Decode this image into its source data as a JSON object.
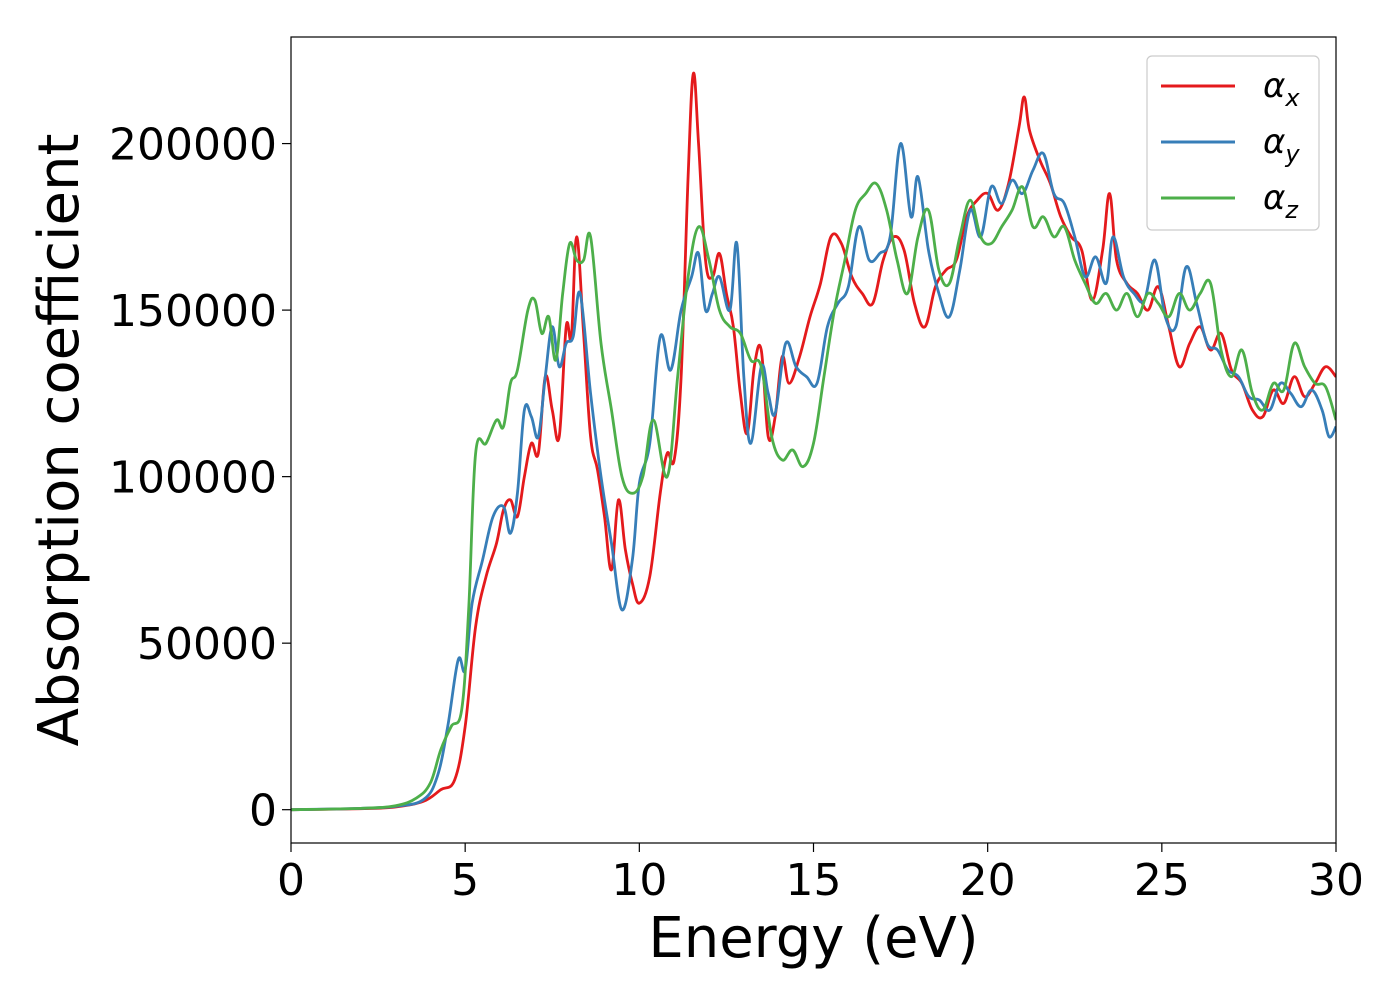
{
  "chart_data": {
    "type": "line",
    "title": "",
    "xlabel": "Energy (eV)",
    "ylabel": "Absorption coefficient",
    "xlim": [
      0,
      30
    ],
    "ylim": [
      -10000,
      232000
    ],
    "xticks": [
      0,
      5,
      10,
      15,
      20,
      25,
      30
    ],
    "yticks": [
      0,
      50000,
      100000,
      150000,
      200000
    ],
    "xtick_labels": [
      "0",
      "5",
      "10",
      "15",
      "20",
      "25",
      "30"
    ],
    "ytick_labels": [
      "0",
      "50000",
      "100000",
      "150000",
      "200000"
    ],
    "grid": false,
    "legend_position": "top-right",
    "series": [
      {
        "name": "αx",
        "legend_symbol": "α",
        "legend_sub": "x",
        "color": "#e41a1c",
        "points": [
          [
            0,
            0
          ],
          [
            2,
            300
          ],
          [
            3,
            800
          ],
          [
            3.8,
            2500
          ],
          [
            4.3,
            6000
          ],
          [
            4.7,
            9000
          ],
          [
            5,
            25000
          ],
          [
            5.3,
            55000
          ],
          [
            5.6,
            70000
          ],
          [
            5.9,
            80000
          ],
          [
            6.1,
            90000
          ],
          [
            6.3,
            93000
          ],
          [
            6.5,
            88000
          ],
          [
            6.7,
            100000
          ],
          [
            6.9,
            110000
          ],
          [
            7.1,
            107000
          ],
          [
            7.3,
            130000
          ],
          [
            7.5,
            120000
          ],
          [
            7.7,
            112000
          ],
          [
            7.9,
            145000
          ],
          [
            8.05,
            142000
          ],
          [
            8.2,
            172000
          ],
          [
            8.4,
            143000
          ],
          [
            8.6,
            112000
          ],
          [
            8.8,
            102000
          ],
          [
            9,
            88000
          ],
          [
            9.2,
            72000
          ],
          [
            9.4,
            93000
          ],
          [
            9.6,
            78000
          ],
          [
            9.8,
            68000
          ],
          [
            10,
            62000
          ],
          [
            10.3,
            70000
          ],
          [
            10.6,
            95000
          ],
          [
            10.8,
            107000
          ],
          [
            11,
            105000
          ],
          [
            11.2,
            130000
          ],
          [
            11.4,
            190000
          ],
          [
            11.55,
            221000
          ],
          [
            11.7,
            200000
          ],
          [
            11.9,
            165000
          ],
          [
            12.1,
            160000
          ],
          [
            12.3,
            167000
          ],
          [
            12.5,
            155000
          ],
          [
            12.7,
            145000
          ],
          [
            12.9,
            125000
          ],
          [
            13.1,
            113000
          ],
          [
            13.3,
            133000
          ],
          [
            13.5,
            138000
          ],
          [
            13.7,
            112000
          ],
          [
            13.9,
            118000
          ],
          [
            14.1,
            136000
          ],
          [
            14.3,
            128000
          ],
          [
            14.6,
            136000
          ],
          [
            14.9,
            148000
          ],
          [
            15.2,
            158000
          ],
          [
            15.5,
            172000
          ],
          [
            15.8,
            170000
          ],
          [
            16.1,
            160000
          ],
          [
            16.4,
            155000
          ],
          [
            16.7,
            152000
          ],
          [
            17,
            165000
          ],
          [
            17.3,
            172000
          ],
          [
            17.6,
            168000
          ],
          [
            17.9,
            152000
          ],
          [
            18.2,
            145000
          ],
          [
            18.5,
            157000
          ],
          [
            18.8,
            162000
          ],
          [
            19.1,
            165000
          ],
          [
            19.4,
            178000
          ],
          [
            19.7,
            183000
          ],
          [
            20,
            185000
          ],
          [
            20.3,
            180000
          ],
          [
            20.6,
            188000
          ],
          [
            20.9,
            205000
          ],
          [
            21.05,
            214000
          ],
          [
            21.2,
            204000
          ],
          [
            21.5,
            195000
          ],
          [
            21.8,
            188000
          ],
          [
            22.1,
            178000
          ],
          [
            22.4,
            172000
          ],
          [
            22.7,
            168000
          ],
          [
            23,
            153000
          ],
          [
            23.3,
            168000
          ],
          [
            23.5,
            185000
          ],
          [
            23.7,
            165000
          ],
          [
            24,
            158000
          ],
          [
            24.3,
            155000
          ],
          [
            24.6,
            150000
          ],
          [
            24.9,
            157000
          ],
          [
            25.2,
            145000
          ],
          [
            25.5,
            133000
          ],
          [
            25.8,
            140000
          ],
          [
            26.1,
            145000
          ],
          [
            26.4,
            138000
          ],
          [
            26.7,
            143000
          ],
          [
            27,
            132000
          ],
          [
            27.3,
            128000
          ],
          [
            27.6,
            120000
          ],
          [
            27.9,
            118000
          ],
          [
            28.2,
            126000
          ],
          [
            28.5,
            122000
          ],
          [
            28.8,
            130000
          ],
          [
            29.1,
            124000
          ],
          [
            29.4,
            128000
          ],
          [
            29.7,
            133000
          ],
          [
            30,
            130000
          ]
        ]
      },
      {
        "name": "αy",
        "legend_symbol": "α",
        "legend_sub": "y",
        "color": "#377eb8",
        "points": [
          [
            0,
            0
          ],
          [
            2,
            400
          ],
          [
            3,
            1000
          ],
          [
            3.8,
            3000
          ],
          [
            4.2,
            10000
          ],
          [
            4.5,
            25000
          ],
          [
            4.8,
            45000
          ],
          [
            5,
            42000
          ],
          [
            5.2,
            62000
          ],
          [
            5.5,
            75000
          ],
          [
            5.8,
            88000
          ],
          [
            6.1,
            91000
          ],
          [
            6.3,
            83000
          ],
          [
            6.5,
            95000
          ],
          [
            6.7,
            120000
          ],
          [
            6.9,
            118000
          ],
          [
            7.1,
            112000
          ],
          [
            7.3,
            130000
          ],
          [
            7.5,
            145000
          ],
          [
            7.7,
            133000
          ],
          [
            7.9,
            140000
          ],
          [
            8.1,
            142000
          ],
          [
            8.3,
            155000
          ],
          [
            8.6,
            125000
          ],
          [
            8.9,
            100000
          ],
          [
            9.2,
            80000
          ],
          [
            9.5,
            60000
          ],
          [
            9.8,
            75000
          ],
          [
            10,
            98000
          ],
          [
            10.3,
            110000
          ],
          [
            10.6,
            142000
          ],
          [
            10.9,
            132000
          ],
          [
            11.2,
            150000
          ],
          [
            11.5,
            160000
          ],
          [
            11.7,
            167000
          ],
          [
            11.9,
            150000
          ],
          [
            12.1,
            155000
          ],
          [
            12.3,
            160000
          ],
          [
            12.6,
            150000
          ],
          [
            12.8,
            170000
          ],
          [
            13,
            130000
          ],
          [
            13.2,
            110000
          ],
          [
            13.5,
            133000
          ],
          [
            13.7,
            125000
          ],
          [
            13.9,
            119000
          ],
          [
            14.2,
            140000
          ],
          [
            14.5,
            133000
          ],
          [
            14.8,
            130000
          ],
          [
            15.1,
            128000
          ],
          [
            15.4,
            145000
          ],
          [
            15.7,
            152000
          ],
          [
            16,
            157000
          ],
          [
            16.3,
            175000
          ],
          [
            16.6,
            165000
          ],
          [
            16.9,
            167000
          ],
          [
            17.2,
            172000
          ],
          [
            17.5,
            200000
          ],
          [
            17.8,
            178000
          ],
          [
            18,
            190000
          ],
          [
            18.3,
            168000
          ],
          [
            18.6,
            155000
          ],
          [
            18.9,
            148000
          ],
          [
            19.2,
            162000
          ],
          [
            19.5,
            180000
          ],
          [
            19.8,
            172000
          ],
          [
            20.1,
            187000
          ],
          [
            20.4,
            182000
          ],
          [
            20.7,
            189000
          ],
          [
            21,
            185000
          ],
          [
            21.3,
            192000
          ],
          [
            21.6,
            197000
          ],
          [
            21.9,
            185000
          ],
          [
            22.2,
            182000
          ],
          [
            22.5,
            172000
          ],
          [
            22.8,
            160000
          ],
          [
            23.1,
            166000
          ],
          [
            23.4,
            158000
          ],
          [
            23.6,
            172000
          ],
          [
            23.9,
            160000
          ],
          [
            24.2,
            155000
          ],
          [
            24.5,
            153000
          ],
          [
            24.8,
            165000
          ],
          [
            25.1,
            148000
          ],
          [
            25.4,
            145000
          ],
          [
            25.7,
            163000
          ],
          [
            26,
            152000
          ],
          [
            26.3,
            140000
          ],
          [
            26.6,
            138000
          ],
          [
            26.9,
            132000
          ],
          [
            27.2,
            130000
          ],
          [
            27.5,
            124000
          ],
          [
            27.8,
            123000
          ],
          [
            28.1,
            120000
          ],
          [
            28.4,
            128000
          ],
          [
            28.7,
            125000
          ],
          [
            29,
            121000
          ],
          [
            29.3,
            126000
          ],
          [
            29.6,
            120000
          ],
          [
            29.8,
            112000
          ],
          [
            30,
            115000
          ]
        ]
      },
      {
        "name": "αz",
        "legend_symbol": "α",
        "legend_sub": "z",
        "color": "#4daf4a",
        "points": [
          [
            0,
            0
          ],
          [
            2,
            400
          ],
          [
            3,
            1200
          ],
          [
            3.6,
            3500
          ],
          [
            4,
            8000
          ],
          [
            4.3,
            18000
          ],
          [
            4.6,
            25000
          ],
          [
            4.9,
            30000
          ],
          [
            5.1,
            60000
          ],
          [
            5.3,
            107000
          ],
          [
            5.6,
            110000
          ],
          [
            5.9,
            117000
          ],
          [
            6.1,
            115000
          ],
          [
            6.3,
            128000
          ],
          [
            6.5,
            132000
          ],
          [
            6.8,
            150000
          ],
          [
            7,
            153000
          ],
          [
            7.2,
            143000
          ],
          [
            7.4,
            148000
          ],
          [
            7.6,
            135000
          ],
          [
            7.8,
            155000
          ],
          [
            8,
            170000
          ],
          [
            8.2,
            165000
          ],
          [
            8.4,
            165000
          ],
          [
            8.6,
            172000
          ],
          [
            8.9,
            140000
          ],
          [
            9.2,
            120000
          ],
          [
            9.5,
            100000
          ],
          [
            9.8,
            95000
          ],
          [
            10.1,
            100000
          ],
          [
            10.4,
            117000
          ],
          [
            10.8,
            100000
          ],
          [
            11.1,
            130000
          ],
          [
            11.4,
            160000
          ],
          [
            11.7,
            175000
          ],
          [
            12,
            165000
          ],
          [
            12.3,
            150000
          ],
          [
            12.6,
            145000
          ],
          [
            12.9,
            143000
          ],
          [
            13.2,
            135000
          ],
          [
            13.5,
            133000
          ],
          [
            13.8,
            112000
          ],
          [
            14.1,
            105000
          ],
          [
            14.4,
            108000
          ],
          [
            14.7,
            103000
          ],
          [
            15,
            110000
          ],
          [
            15.3,
            130000
          ],
          [
            15.6,
            150000
          ],
          [
            15.9,
            165000
          ],
          [
            16.2,
            180000
          ],
          [
            16.5,
            185000
          ],
          [
            16.8,
            188000
          ],
          [
            17.1,
            180000
          ],
          [
            17.4,
            165000
          ],
          [
            17.7,
            155000
          ],
          [
            18,
            172000
          ],
          [
            18.3,
            180000
          ],
          [
            18.6,
            162000
          ],
          [
            18.9,
            158000
          ],
          [
            19.2,
            172000
          ],
          [
            19.5,
            183000
          ],
          [
            19.8,
            172000
          ],
          [
            20.1,
            170000
          ],
          [
            20.4,
            175000
          ],
          [
            20.7,
            180000
          ],
          [
            21,
            187000
          ],
          [
            21.3,
            175000
          ],
          [
            21.6,
            178000
          ],
          [
            21.9,
            172000
          ],
          [
            22.2,
            175000
          ],
          [
            22.5,
            165000
          ],
          [
            22.8,
            158000
          ],
          [
            23.1,
            152000
          ],
          [
            23.4,
            155000
          ],
          [
            23.7,
            150000
          ],
          [
            24,
            155000
          ],
          [
            24.3,
            148000
          ],
          [
            24.6,
            155000
          ],
          [
            24.9,
            152000
          ],
          [
            25.2,
            148000
          ],
          [
            25.5,
            155000
          ],
          [
            25.8,
            150000
          ],
          [
            26.1,
            155000
          ],
          [
            26.4,
            158000
          ],
          [
            26.7,
            138000
          ],
          [
            27,
            130000
          ],
          [
            27.3,
            138000
          ],
          [
            27.6,
            125000
          ],
          [
            27.9,
            120000
          ],
          [
            28.2,
            128000
          ],
          [
            28.5,
            126000
          ],
          [
            28.8,
            140000
          ],
          [
            29.1,
            133000
          ],
          [
            29.4,
            128000
          ],
          [
            29.7,
            127000
          ],
          [
            30,
            117000
          ]
        ]
      }
    ]
  }
}
